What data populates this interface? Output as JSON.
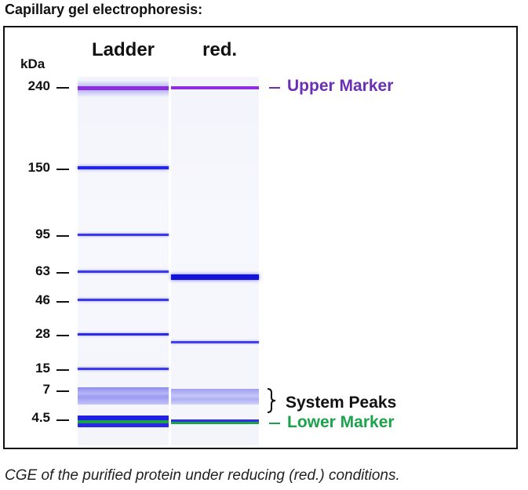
{
  "title": "Capillary gel electrophoresis:",
  "caption": "CGE of the purified protein under reducing (red.) conditions.",
  "axis_label": "kDa",
  "lanes": [
    {
      "name": "Ladder"
    },
    {
      "name": "red."
    }
  ],
  "markers": [
    {
      "kda": "240"
    },
    {
      "kda": "150"
    },
    {
      "kda": "95"
    },
    {
      "kda": "63"
    },
    {
      "kda": "46"
    },
    {
      "kda": "28"
    },
    {
      "kda": "15"
    },
    {
      "kda": "7"
    },
    {
      "kda": "4.5"
    }
  ],
  "annotations": {
    "upper": "Upper Marker",
    "system": "System Peaks",
    "lower": "Lower Marker"
  },
  "colors": {
    "upper_marker": "#8e2de0",
    "lower_marker": "#1aa34a",
    "band": "#2323e8",
    "upper_label": "#6a2fb5",
    "lower_label": "#1aa34a"
  }
}
